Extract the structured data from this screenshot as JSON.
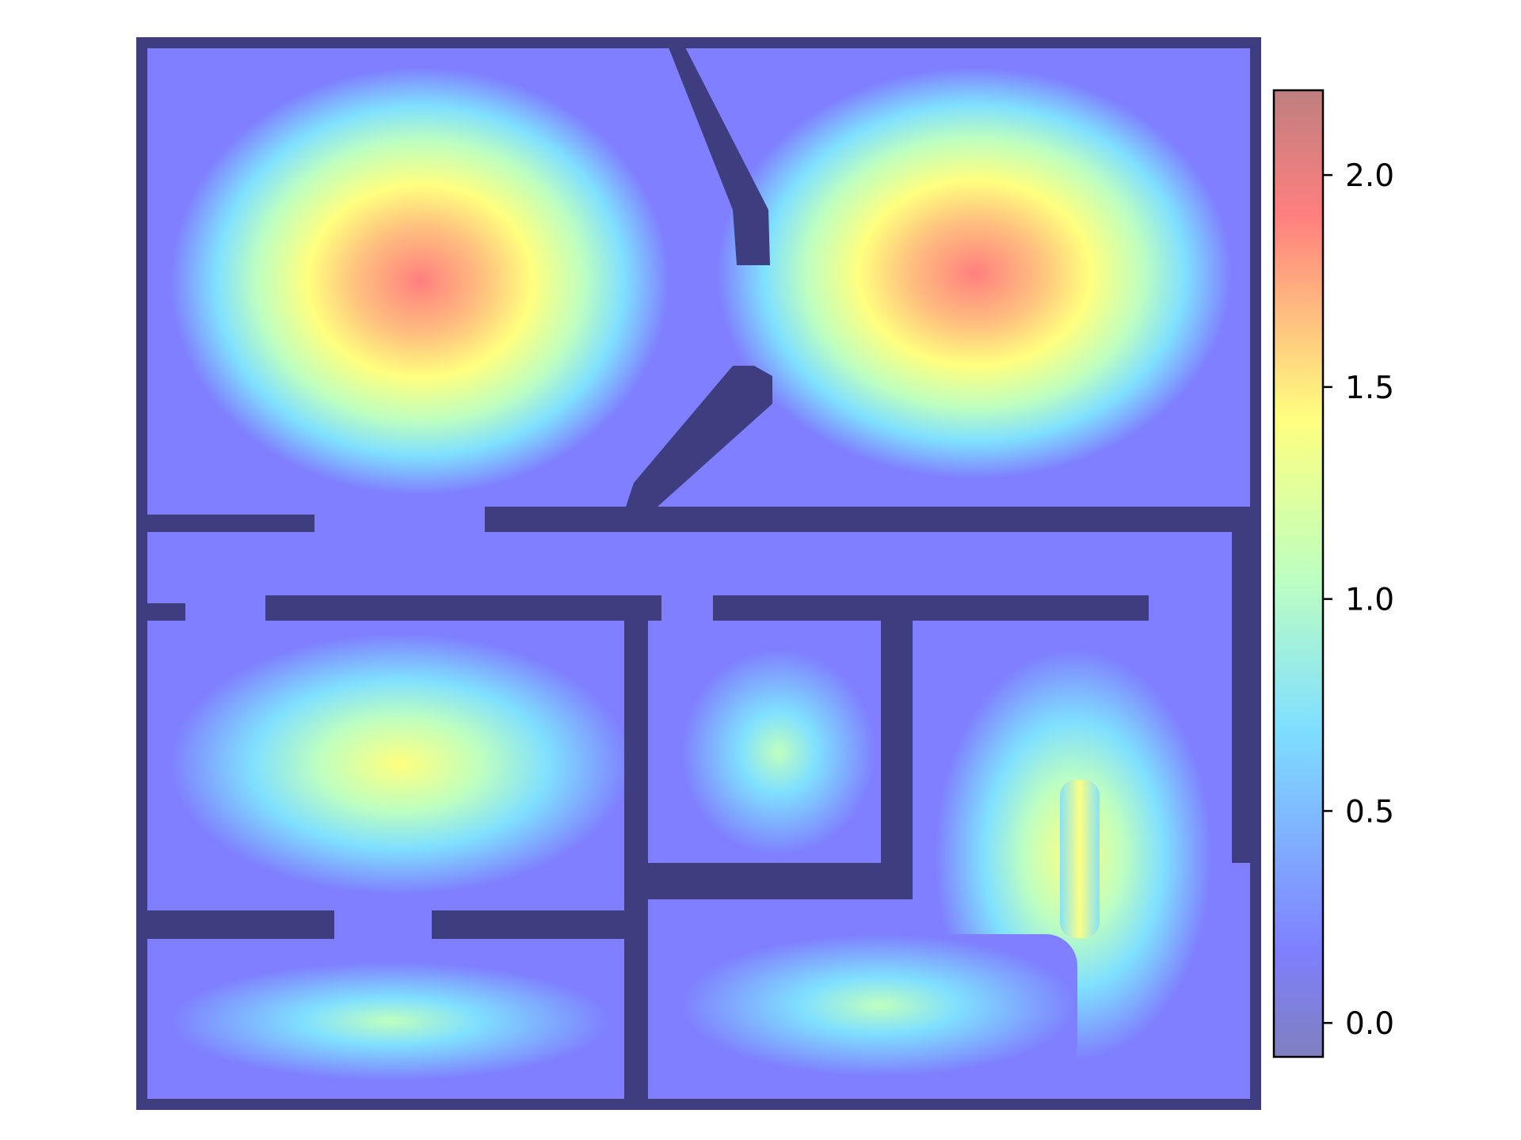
{
  "chart_data": {
    "type": "heatmap",
    "title": "",
    "xlabel": "",
    "ylabel": "",
    "axes_visible": false,
    "grid": false,
    "colormap": "jet",
    "alpha": 0.5,
    "colorbar": {
      "position": "right",
      "range": [
        -0.08,
        2.2
      ],
      "ticks": [
        0.0,
        0.5,
        1.0,
        1.5,
        2.0
      ],
      "tick_labels": [
        "0.0",
        "0.5",
        "1.0",
        "1.5",
        "2.0"
      ]
    },
    "description_value_peaks": [
      {
        "region": "top-left room",
        "value": 2.1
      },
      {
        "region": "top-right room",
        "value": 2.05
      },
      {
        "region": "bottom-left room",
        "value": 1.45
      },
      {
        "region": "bottom-middle small room",
        "value": 1.0
      },
      {
        "region": "bottom-right room",
        "value": 1.5
      },
      {
        "region": "bottom-left lower room",
        "value": 0.85
      },
      {
        "region": "walls",
        "value": 0.0
      }
    ]
  },
  "colors": {
    "wall": "#3d3d80",
    "colorbar_low": "#7f7fbf",
    "colorbar_high": "#bf7f7f"
  }
}
